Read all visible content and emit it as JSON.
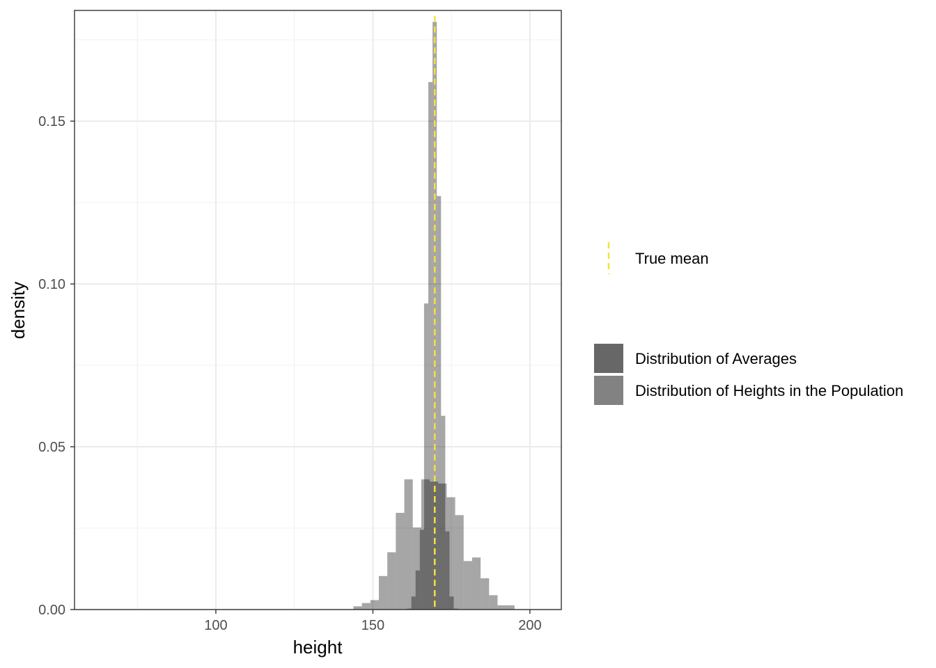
{
  "chart_data": {
    "type": "histogram",
    "xlabel": "height",
    "ylabel": "density",
    "xlim": [
      55,
      210
    ],
    "ylim": [
      0,
      0.184
    ],
    "x_ticks": [
      100,
      150,
      200
    ],
    "y_ticks": [
      0.0,
      0.05,
      0.1,
      0.15
    ],
    "y_tick_labels": [
      "0.00",
      "0.05",
      "0.10",
      "0.15"
    ],
    "grid": true,
    "legend_position": "right",
    "colors": {
      "averages": "#4d4d4d",
      "population": "#8c8c8c",
      "true_mean": "#f5e13a"
    },
    "series": [
      {
        "name": "Distribution of Heights in the Population",
        "bin_width": 2.7,
        "bins": [
          {
            "x0": 143.8,
            "density": 0.001
          },
          {
            "x0": 146.5,
            "density": 0.002
          },
          {
            "x0": 149.2,
            "density": 0.0029
          },
          {
            "x0": 151.9,
            "density": 0.0103
          },
          {
            "x0": 154.6,
            "density": 0.0176
          },
          {
            "x0": 157.3,
            "density": 0.0297
          },
          {
            "x0": 160.0,
            "density": 0.04
          },
          {
            "x0": 162.7,
            "density": 0.0252
          },
          {
            "x0": 165.4,
            "density": 0.04
          },
          {
            "x0": 168.1,
            "density": 0.0393
          },
          {
            "x0": 170.8,
            "density": 0.0387
          },
          {
            "x0": 173.5,
            "density": 0.0345
          },
          {
            "x0": 176.2,
            "density": 0.029
          },
          {
            "x0": 178.9,
            "density": 0.0149
          },
          {
            "x0": 181.6,
            "density": 0.016
          },
          {
            "x0": 184.3,
            "density": 0.0096
          },
          {
            "x0": 187.0,
            "density": 0.0044
          },
          {
            "x0": 189.7,
            "density": 0.0013
          },
          {
            "x0": 192.4,
            "density": 0.0013
          }
        ]
      },
      {
        "name": "Distribution of Averages",
        "bin_width": 1.35,
        "bins": [
          {
            "x0": 160.9,
            "density": 0.0003
          },
          {
            "x0": 162.25,
            "density": 0.004
          },
          {
            "x0": 163.6,
            "density": 0.012
          },
          {
            "x0": 164.95,
            "density": 0.0245
          },
          {
            "x0": 166.3,
            "density": 0.094
          },
          {
            "x0": 167.65,
            "density": 0.162
          },
          {
            "x0": 169.0,
            "density": 0.1805
          },
          {
            "x0": 170.35,
            "density": 0.127
          },
          {
            "x0": 171.7,
            "density": 0.0595
          },
          {
            "x0": 173.05,
            "density": 0.024
          },
          {
            "x0": 174.4,
            "density": 0.004
          },
          {
            "x0": 175.75,
            "density": 0.0003
          }
        ]
      }
    ],
    "true_mean": {
      "name": "True mean",
      "value": 169.7
    }
  }
}
